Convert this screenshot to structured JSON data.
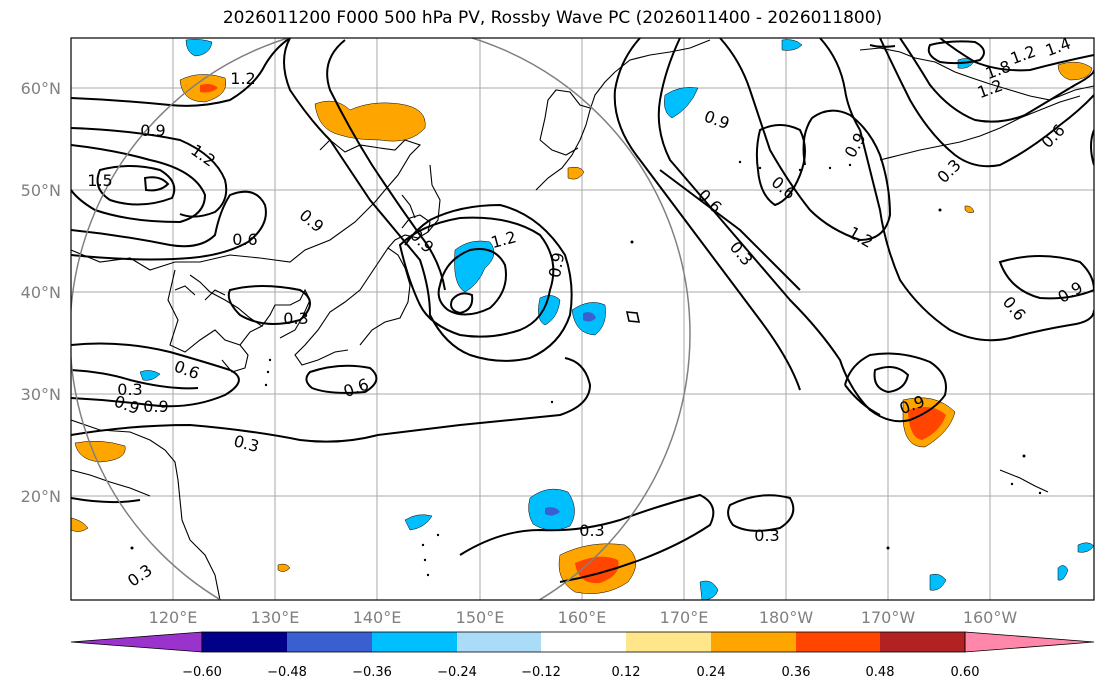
{
  "title": "2026011200 F000 500 hPa PV, Rossby Wave PC (2026011400 - 2026011800)",
  "map": {
    "lat_labels": [
      "60°N",
      "50°N",
      "40°N",
      "30°N",
      "20°N"
    ],
    "lon_labels": [
      "120°E",
      "130°E",
      "140°E",
      "150°E",
      "160°E",
      "170°E",
      "180°W",
      "170°W",
      "160°W"
    ],
    "contour_labels": [
      "1.2",
      "0.9",
      "1.5",
      "1.2",
      "0.6",
      "0.9",
      "0.3",
      "0.6",
      "0.9",
      "0.9",
      "0.3",
      "1.2",
      "0.9",
      "0.6",
      "0.9",
      "0.6",
      "0.3",
      "0.9",
      "1.2",
      "0.9",
      "0.6",
      "0.3",
      "1.8",
      "1.2",
      "0.6",
      "1.2",
      "1.4",
      "0.6",
      "0.9",
      "0.9",
      "0.3",
      "0.3",
      "0.3",
      "0.3"
    ]
  },
  "colorbar": {
    "ticks": [
      "−0.60",
      "−0.48",
      "−0.36",
      "−0.24",
      "−0.12",
      "0.12",
      "0.24",
      "0.36",
      "0.48",
      "0.60"
    ],
    "colors": [
      "#9933cc",
      "#000088",
      "#3a5fd0",
      "#00bfff",
      "#aadcf7",
      "#ffffff",
      "#ffe68a",
      "#ffa500",
      "#ff4500",
      "#b22222",
      "#ff88aa"
    ]
  }
}
